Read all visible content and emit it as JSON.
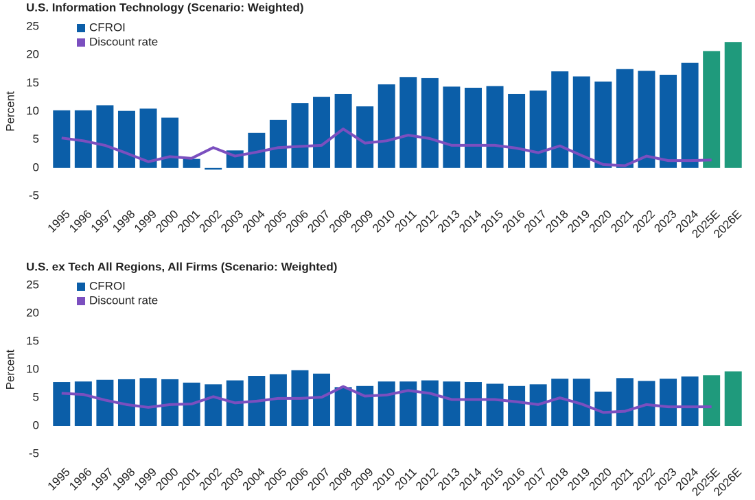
{
  "chart_data": [
    {
      "type": "bar",
      "title": "U.S. Information Technology (Scenario: Weighted)",
      "y_label": "Percent",
      "categories": [
        "1995",
        "1996",
        "1997",
        "1998",
        "1999",
        "2000",
        "2001",
        "2002",
        "2003",
        "2004",
        "2005",
        "2006",
        "2007",
        "2008",
        "2009",
        "2010",
        "2011",
        "2012",
        "2013",
        "2014",
        "2015",
        "2016",
        "2017",
        "2018",
        "2019",
        "2020",
        "2021",
        "2022",
        "2023",
        "2024",
        "2025E",
        "2026E"
      ],
      "series": [
        {
          "name": "CFROI",
          "type": "bar",
          "color": "#0b5ea8",
          "estimate_color": "#1f9a7c",
          "values": [
            10.2,
            10.2,
            11.1,
            10.1,
            10.5,
            8.9,
            1.6,
            -0.3,
            3.1,
            6.2,
            8.5,
            11.5,
            12.6,
            13.1,
            10.9,
            14.8,
            16.1,
            15.9,
            14.4,
            14.2,
            14.5,
            13.1,
            13.7,
            17.1,
            16.2,
            15.3,
            17.5,
            17.2,
            16.5,
            18.6,
            20.7,
            22.3
          ]
        },
        {
          "name": "Discount rate",
          "type": "line",
          "color": "#7b4fbf",
          "values": [
            5.3,
            4.8,
            4.0,
            2.6,
            1.1,
            2.0,
            1.7,
            3.6,
            2.1,
            2.8,
            3.6,
            3.8,
            4.0,
            6.9,
            4.4,
            4.8,
            5.8,
            5.2,
            4.0,
            4.0,
            4.0,
            3.5,
            2.7,
            3.9,
            2.2,
            0.6,
            0.4,
            2.1,
            1.3,
            1.3,
            1.4,
            null
          ]
        }
      ],
      "ylim": [
        -5,
        25
      ],
      "yticks": [
        -5,
        0,
        5,
        10,
        15,
        20,
        25
      ],
      "grid": false,
      "legend": "top-left"
    },
    {
      "type": "bar",
      "title": "U.S. ex Tech All Regions, All Firms (Scenario: Weighted)",
      "y_label": "Percent",
      "categories": [
        "1995",
        "1996",
        "1997",
        "1998",
        "1999",
        "2000",
        "2001",
        "2002",
        "2003",
        "2004",
        "2005",
        "2006",
        "2007",
        "2008",
        "2009",
        "2010",
        "2011",
        "2012",
        "2013",
        "2014",
        "2015",
        "2016",
        "2017",
        "2018",
        "2019",
        "2020",
        "2021",
        "2022",
        "2023",
        "2024",
        "2025E",
        "2026E"
      ],
      "series": [
        {
          "name": "CFROI",
          "type": "bar",
          "color": "#0b5ea8",
          "estimate_color": "#1f9a7c",
          "values": [
            7.8,
            7.9,
            8.2,
            8.3,
            8.5,
            8.3,
            7.7,
            7.4,
            8.1,
            8.9,
            9.2,
            9.9,
            9.3,
            6.9,
            7.1,
            7.9,
            7.9,
            8.1,
            7.9,
            7.8,
            7.5,
            7.1,
            7.4,
            8.4,
            8.4,
            6.1,
            8.5,
            8.0,
            8.4,
            8.8,
            9.0,
            9.7
          ]
        },
        {
          "name": "Discount rate",
          "type": "line",
          "color": "#7b4fbf",
          "values": [
            5.8,
            5.6,
            4.6,
            3.8,
            3.3,
            3.8,
            3.9,
            5.2,
            4.1,
            4.4,
            4.9,
            4.9,
            5.1,
            7.0,
            5.3,
            5.5,
            6.3,
            5.8,
            4.7,
            4.7,
            4.7,
            4.3,
            3.8,
            5.0,
            3.9,
            2.4,
            2.6,
            3.8,
            3.4,
            3.4,
            3.4,
            null
          ]
        }
      ],
      "ylim": [
        -5,
        25
      ],
      "yticks": [
        -5,
        0,
        5,
        10,
        15,
        20,
        25
      ],
      "grid": false,
      "legend": "top-left"
    }
  ]
}
